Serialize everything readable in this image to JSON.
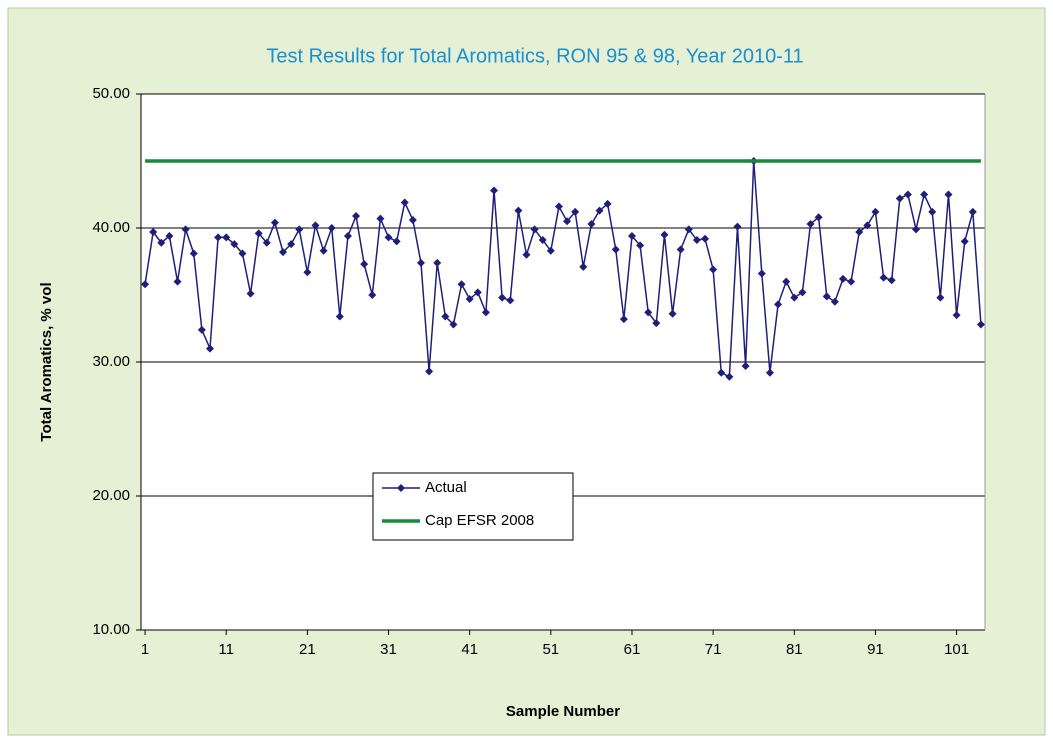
{
  "chart_data": {
    "type": "line",
    "title": "Test Results for Total Aromatics, RON 95 & 98, Year 2010-11",
    "x_label": "Sample Number",
    "y_label": "Total Aromatics, % vol",
    "x": [
      1,
      2,
      3,
      4,
      5,
      6,
      7,
      8,
      9,
      10,
      11,
      12,
      13,
      14,
      15,
      16,
      17,
      18,
      19,
      20,
      21,
      22,
      23,
      24,
      25,
      26,
      27,
      28,
      29,
      30,
      31,
      32,
      33,
      34,
      35,
      36,
      37,
      38,
      39,
      40,
      41,
      42,
      43,
      44,
      45,
      46,
      47,
      48,
      49,
      50,
      51,
      52,
      53,
      54,
      55,
      56,
      57,
      58,
      59,
      60,
      61,
      62,
      63,
      64,
      65,
      66,
      67,
      68,
      69,
      70,
      71,
      72,
      73,
      74,
      75,
      76,
      77,
      78,
      79,
      80,
      81,
      82,
      83,
      84,
      85,
      86,
      87,
      88,
      89,
      90,
      91,
      92,
      93,
      94,
      95,
      96,
      97,
      98,
      99,
      100,
      101,
      102,
      103,
      104
    ],
    "series": [
      {
        "name": "Actual",
        "color": "#1f1f7a",
        "marker": "diamond",
        "values": [
          35.8,
          39.7,
          38.9,
          39.4,
          36.0,
          39.9,
          38.1,
          32.4,
          31.0,
          39.3,
          39.3,
          38.8,
          38.1,
          35.1,
          39.6,
          38.9,
          40.4,
          38.2,
          38.8,
          39.9,
          36.7,
          40.2,
          38.3,
          40.0,
          33.4,
          39.4,
          40.9,
          37.3,
          35.0,
          40.7,
          39.3,
          39.0,
          41.9,
          40.6,
          37.4,
          29.3,
          37.4,
          33.4,
          32.8,
          35.8,
          34.7,
          35.2,
          33.7,
          42.8,
          34.8,
          34.6,
          41.3,
          38.0,
          39.9,
          39.1,
          38.3,
          41.6,
          40.5,
          41.2,
          37.1,
          40.3,
          41.3,
          41.8,
          38.4,
          33.2,
          39.4,
          38.7,
          33.7,
          32.9,
          39.5,
          33.6,
          38.4,
          39.9,
          39.1,
          39.2,
          36.9,
          29.2,
          28.9,
          40.1,
          29.7,
          45.0,
          36.6,
          29.2,
          34.3,
          36.0,
          34.8,
          35.2,
          40.3,
          40.8,
          34.9,
          34.5,
          36.2,
          36.0,
          39.7,
          40.2,
          41.2,
          36.3,
          36.1,
          42.2,
          42.5,
          39.9,
          42.5,
          41.2,
          34.8,
          42.5,
          33.5,
          39.0,
          41.2,
          32.8
        ]
      },
      {
        "name": "Cap EFSR 2008",
        "color": "#1a8a3a",
        "values": [
          45,
          45,
          45,
          45,
          45,
          45,
          45,
          45,
          45,
          45,
          45,
          45,
          45,
          45,
          45,
          45,
          45,
          45,
          45,
          45,
          45,
          45,
          45,
          45,
          45,
          45,
          45,
          45,
          45,
          45,
          45,
          45,
          45,
          45,
          45,
          45,
          45,
          45,
          45,
          45,
          45,
          45,
          45,
          45,
          45,
          45,
          45,
          45,
          45,
          45,
          45,
          45,
          45,
          45,
          45,
          45,
          45,
          45,
          45,
          45,
          45,
          45,
          45,
          45,
          45,
          45,
          45,
          45,
          45,
          45,
          45,
          45,
          45,
          45,
          45,
          45,
          45,
          45,
          45,
          45,
          45,
          45,
          45,
          45,
          45,
          45,
          45,
          45,
          45,
          45,
          45,
          45,
          45,
          45,
          45,
          45,
          45,
          45,
          45,
          45,
          45,
          45,
          45,
          45
        ]
      }
    ],
    "xlim": [
      0.5,
      104.5
    ],
    "xticks": [
      1,
      11,
      21,
      31,
      41,
      51,
      61,
      71,
      81,
      91,
      101
    ],
    "ylim": [
      10,
      50
    ],
    "yticks": [
      {
        "value": 10,
        "label": "10.00"
      },
      {
        "value": 20,
        "label": "20.00"
      },
      {
        "value": 30,
        "label": "30.00"
      },
      {
        "value": 40,
        "label": "40.00"
      },
      {
        "value": 50,
        "label": "50.00"
      }
    ],
    "grid": true
  }
}
